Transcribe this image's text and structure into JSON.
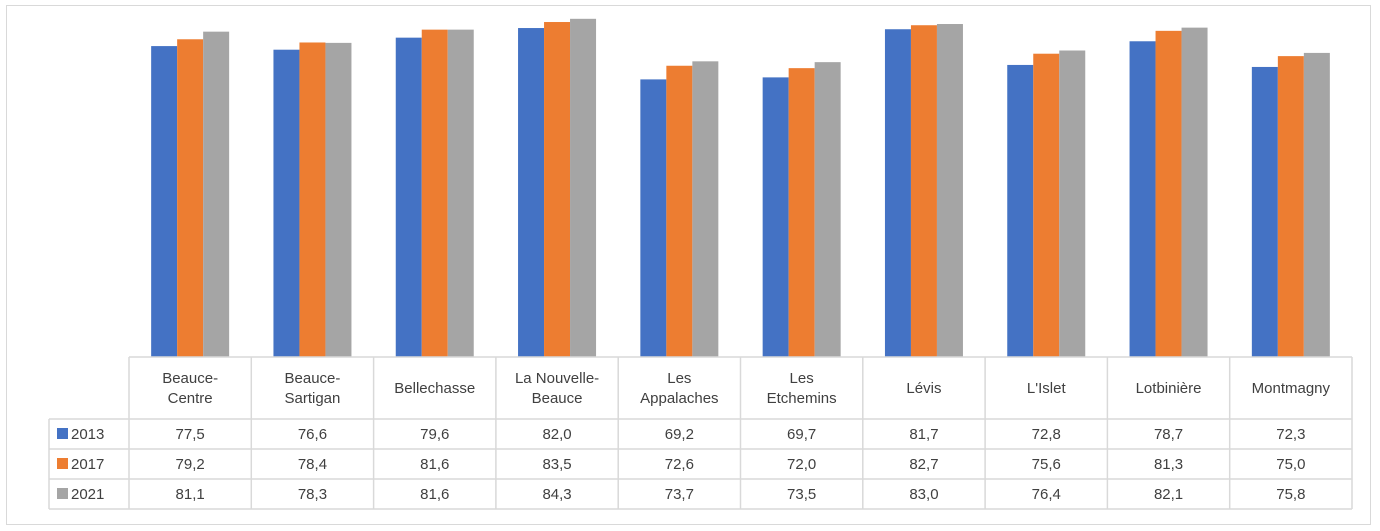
{
  "chart_data": {
    "type": "bar",
    "title": "",
    "xlabel": "",
    "ylabel": "",
    "ylim": [
      0,
      85
    ],
    "grid": false,
    "legend": "data-table",
    "categories": [
      [
        "Beauce-",
        "Centre"
      ],
      [
        "Beauce-",
        "Sartigan"
      ],
      [
        "Bellechasse"
      ],
      [
        "La Nouvelle-",
        "Beauce"
      ],
      [
        "Les",
        "Appalaches"
      ],
      [
        "Les",
        "Etchemins"
      ],
      [
        "Lévis"
      ],
      [
        "L'Islet"
      ],
      [
        "Lotbinière"
      ],
      [
        "Montmagny"
      ]
    ],
    "series": [
      {
        "name": "2013",
        "color": "#4472c4",
        "values": [
          77.5,
          76.6,
          79.6,
          82.0,
          69.2,
          69.7,
          81.7,
          72.8,
          78.7,
          72.3
        ],
        "labels": [
          "77,5",
          "76,6",
          "79,6",
          "82,0",
          "69,2",
          "69,7",
          "81,7",
          "72,8",
          "78,7",
          "72,3"
        ]
      },
      {
        "name": "2017",
        "color": "#ed7d31",
        "values": [
          79.2,
          78.4,
          81.6,
          83.5,
          72.6,
          72.0,
          82.7,
          75.6,
          81.3,
          75.0
        ],
        "labels": [
          "79,2",
          "78,4",
          "81,6",
          "83,5",
          "72,6",
          "72,0",
          "82,7",
          "75,6",
          "81,3",
          "75,0"
        ]
      },
      {
        "name": "2021",
        "color": "#a5a5a5",
        "values": [
          81.1,
          78.3,
          81.6,
          84.3,
          73.7,
          73.5,
          83.0,
          76.4,
          82.1,
          75.8
        ],
        "labels": [
          "81,1",
          "78,3",
          "81,6",
          "84,3",
          "73,7",
          "73,5",
          "83,0",
          "76,4",
          "82,1",
          "75,8"
        ]
      }
    ]
  }
}
